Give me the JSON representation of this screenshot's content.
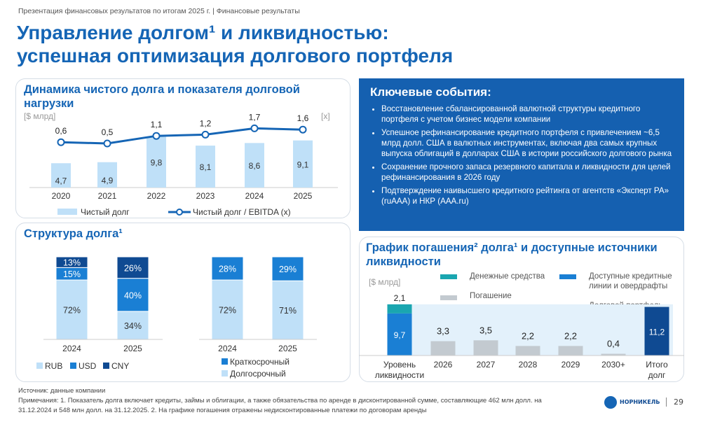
{
  "header": {
    "breadcrumb": "Презентация финансовых результатов по итогам 2025 г. | Финансовые результаты",
    "title_line1": "Управление долгом¹ и ликвидностью:",
    "title_line2": "успешная оптимизация долгового портфеля"
  },
  "colors": {
    "brand": "#1565b5",
    "light_bar": "#bfe0f8",
    "mid_blue": "#1a7fd4",
    "dark_blue": "#0f4a92",
    "teal": "#1aa6b0",
    "grey": "#c3cad0"
  },
  "chart_data": [
    {
      "type": "bar",
      "title": "Динамика чистого долга и показателя долговой нагрузки",
      "ylabel": "[$ млрд]",
      "y2label": "[x]",
      "categories": [
        "2020",
        "2021",
        "2022",
        "2023",
        "2024",
        "2025"
      ],
      "series": [
        {
          "name": "Чистый долг",
          "type": "bar",
          "values": [
            4.7,
            4.9,
            9.8,
            8.1,
            8.6,
            9.1
          ],
          "labels": [
            "4,7",
            "4,9",
            "9,8",
            "8,1",
            "8,6",
            "9,1"
          ]
        },
        {
          "name": "Чистый долг / EBITDA (x)",
          "type": "line",
          "values": [
            0.6,
            0.5,
            1.1,
            1.2,
            1.7,
            1.6
          ],
          "labels": [
            "0,6",
            "0,5",
            "1,1",
            "1,2",
            "1,7",
            "1,6"
          ]
        }
      ],
      "legend": "bottom"
    },
    {
      "type": "bar",
      "title": "Структура долга¹",
      "stacked": true,
      "percent": true,
      "groups": [
        {
          "categories": [
            "2024",
            "2025"
          ],
          "series": [
            {
              "name": "RUB",
              "values": [
                72,
                34
              ]
            },
            {
              "name": "USD",
              "values": [
                15,
                40
              ]
            },
            {
              "name": "CNY",
              "values": [
                13,
                26
              ]
            }
          ]
        },
        {
          "categories": [
            "2024",
            "2025"
          ],
          "series": [
            {
              "name": "Долгосрочный",
              "values": [
                72,
                71
              ]
            },
            {
              "name": "Краткосрочный",
              "values": [
                28,
                29
              ]
            }
          ]
        }
      ]
    },
    {
      "type": "bar",
      "title": "График погашения² долга¹ и доступные источники ликвидности",
      "ylabel": "[$ млрд]",
      "categories": [
        "Уровень ликвидности",
        "2026",
        "2027",
        "2028",
        "2029",
        "2030+",
        "Итого долг"
      ],
      "series": [
        {
          "name": "Денежные средства",
          "values": [
            2.1,
            null,
            null,
            null,
            null,
            null,
            null
          ]
        },
        {
          "name": "Доступные кредитные линии и овердрафты",
          "values": [
            9.7,
            null,
            null,
            null,
            null,
            null,
            null
          ]
        },
        {
          "name": "Погашение",
          "values": [
            null,
            3.3,
            3.5,
            2.2,
            2.2,
            0.4,
            null
          ]
        },
        {
          "name": "Долговой портфель",
          "values": [
            null,
            null,
            null,
            null,
            null,
            null,
            11.2
          ]
        }
      ],
      "labels": [
        "2,1",
        "9,7",
        "3,3",
        "3,5",
        "2,2",
        "2,2",
        "0,4",
        "11,2"
      ]
    }
  ],
  "events": {
    "title": "Ключевые события:",
    "items": [
      "Восстановление сбалансированной валютной структуры кредитного портфеля с учетом бизнес модели компании",
      "Успешное рефинансирование кредитного портфеля с привлечением ~6,5 млрд долл. США в валютных инструментах, включая два самых крупных выпуска облигаций в долларах США в истории российского долгового рынка",
      "Сохранение прочного запаса резервного капитала и ликвидности для целей рефинансирования в 2026 году",
      "Подтверждение наивысшего кредитного рейтинга от агентств «Эксперт РА» (ruAAA) и НКР (AAA.ru)"
    ]
  },
  "footer": {
    "source": "Источник: данные компании",
    "notes": "Примечания: 1. Показатель долга включает кредиты, займы и облигации, а также обязательства по аренде в дисконтированной сумме, составляющие 462 млн долл. на 31.12.2024 и 548 млн долл. на 31.12.2025. 2. На графике погашения отражены недисконтированные платежи по договорам аренды",
    "logo": "НОРНИКЕЛЬ",
    "page": "29"
  }
}
